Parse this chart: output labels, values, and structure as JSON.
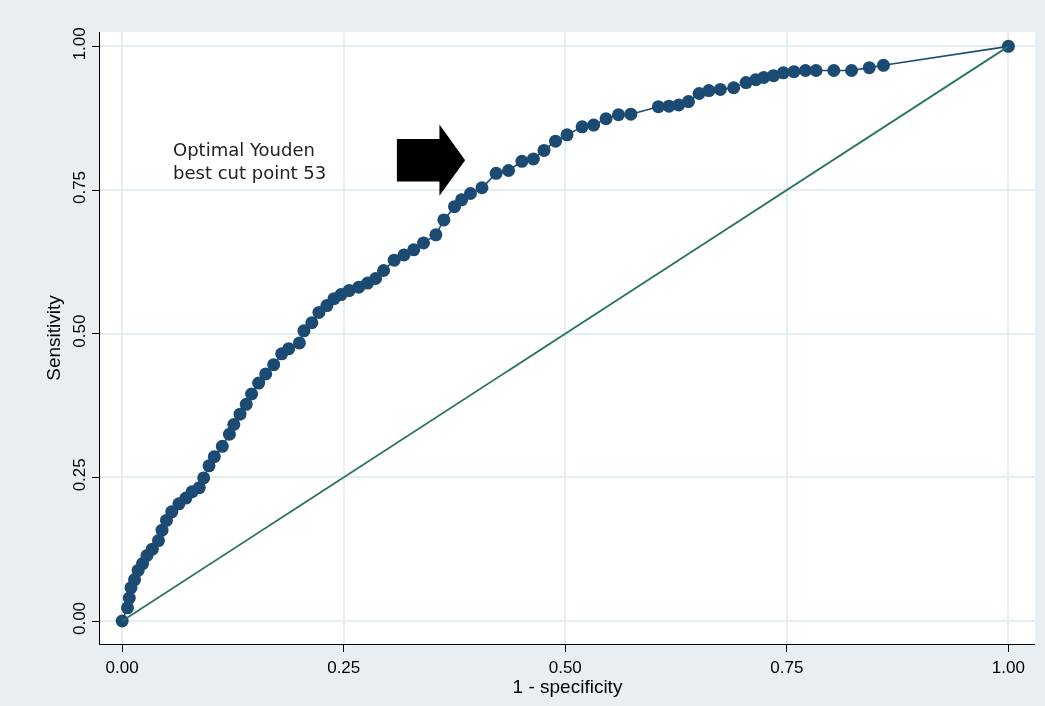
{
  "chart_data": {
    "type": "line",
    "xlabel": "1 - specificity",
    "ylabel": "Sensitivity",
    "annotations": [
      "Optimal Youden\nbest cut point 53"
    ],
    "xlim": [
      -0.025,
      1.03
    ],
    "ylim": [
      -0.04,
      1.025
    ],
    "xticks": [
      {
        "value": 0,
        "label": "0.00"
      },
      {
        "value": 0.25,
        "label": "0.25"
      },
      {
        "value": 0.5,
        "label": "0.50"
      },
      {
        "value": 0.75,
        "label": "0.75"
      },
      {
        "value": 1,
        "label": "1.00"
      }
    ],
    "yticks": [
      {
        "value": 0,
        "label": "0.00"
      },
      {
        "value": 0.25,
        "label": "0.25"
      },
      {
        "value": 0.5,
        "label": "0.50"
      },
      {
        "value": 0.75,
        "label": "0.75"
      },
      {
        "value": 1,
        "label": "1.00"
      }
    ],
    "grid": true,
    "series": [
      {
        "marker": "circle",
        "color": "#1b4a73",
        "x": [
          0,
          0.006,
          0.008,
          0.01,
          0.014,
          0.018,
          0.023,
          0.028,
          0.034,
          0.041,
          0.045,
          0.05,
          0.056,
          0.064,
          0.072,
          0.079,
          0.087,
          0.092,
          0.098,
          0.104,
          0.113,
          0.121,
          0.126,
          0.133,
          0.14,
          0.146,
          0.154,
          0.162,
          0.171,
          0.18,
          0.188,
          0.2,
          0.205,
          0.214,
          0.222,
          0.231,
          0.239,
          0.247,
          0.256,
          0.267,
          0.277,
          0.286,
          0.295,
          0.307,
          0.318,
          0.329,
          0.34,
          0.354,
          0.363,
          0.375,
          0.383,
          0.393,
          0.406,
          0.422,
          0.436,
          0.451,
          0.464,
          0.476,
          0.489,
          0.502,
          0.519,
          0.532,
          0.546,
          0.56,
          0.574,
          0.605,
          0.617,
          0.628,
          0.639,
          0.651,
          0.662,
          0.675,
          0.69,
          0.704,
          0.715,
          0.724,
          0.735,
          0.746,
          0.758,
          0.771,
          0.783,
          0.803,
          0.823,
          0.843,
          0.859,
          1
        ],
        "values": [
          0,
          0.023,
          0.04,
          0.058,
          0.072,
          0.088,
          0.1,
          0.114,
          0.125,
          0.14,
          0.158,
          0.175,
          0.19,
          0.204,
          0.214,
          0.225,
          0.232,
          0.249,
          0.27,
          0.286,
          0.304,
          0.325,
          0.342,
          0.36,
          0.377,
          0.395,
          0.414,
          0.43,
          0.446,
          0.465,
          0.474,
          0.484,
          0.505,
          0.519,
          0.537,
          0.549,
          0.561,
          0.568,
          0.575,
          0.581,
          0.588,
          0.596,
          0.61,
          0.628,
          0.637,
          0.646,
          0.658,
          0.672,
          0.698,
          0.721,
          0.733,
          0.744,
          0.754,
          0.779,
          0.784,
          0.8,
          0.804,
          0.819,
          0.835,
          0.846,
          0.86,
          0.863,
          0.874,
          0.881,
          0.882,
          0.895,
          0.896,
          0.898,
          0.904,
          0.918,
          0.923,
          0.925,
          0.928,
          0.937,
          0.942,
          0.946,
          0.949,
          0.954,
          0.956,
          0.958,
          0.958,
          0.958,
          0.958,
          0.963,
          0.967,
          1
        ]
      },
      {
        "marker": "none",
        "color": "#2a7360",
        "x": [
          0,
          1
        ],
        "values": [
          0,
          1
        ]
      }
    ]
  }
}
